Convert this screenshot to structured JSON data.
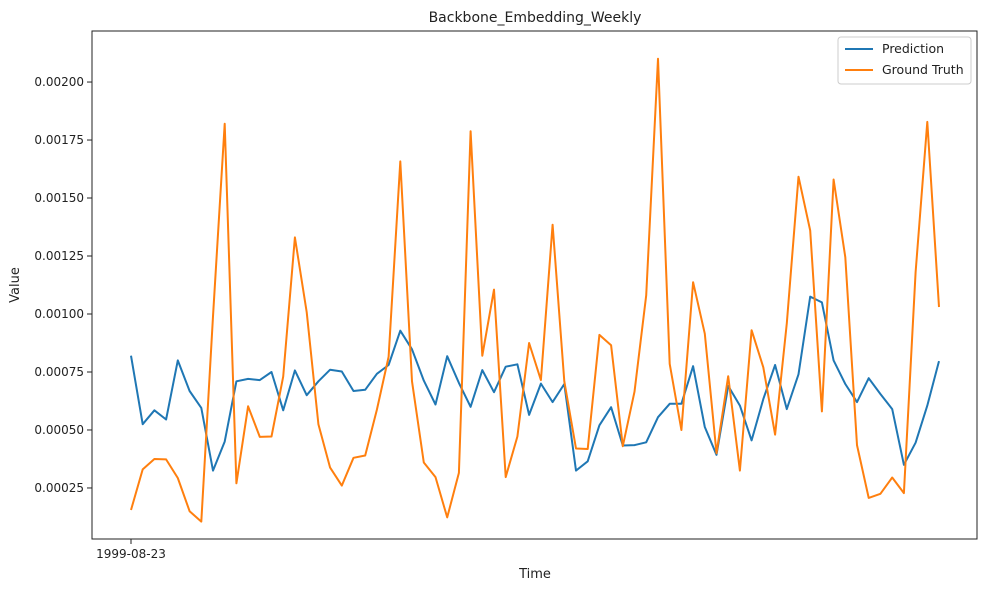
{
  "chart_data": {
    "type": "line",
    "title": "Backbone_Embedding_Weekly",
    "xlabel": "Time",
    "ylabel": "Value",
    "x_tick_labels": [
      {
        "index": 0,
        "label": "1999-08-23"
      }
    ],
    "ylim": [
      3e-05,
      0.00222
    ],
    "y_ticks": [
      0.00025,
      0.0005,
      0.00075,
      0.001,
      0.00125,
      0.0015,
      0.00175,
      0.002
    ],
    "y_tick_labels": [
      "0.00025",
      "0.00050",
      "0.00075",
      "0.00100",
      "0.00125",
      "0.00150",
      "0.00175",
      "0.00200"
    ],
    "legend_position": "top-right",
    "grid": false,
    "series": [
      {
        "name": "Prediction",
        "color": "#1f77b4",
        "values": [
          0.00082,
          0.000525,
          0.000585,
          0.000545,
          0.0008,
          0.000668,
          0.000595,
          0.000325,
          0.00045,
          0.00071,
          0.00072,
          0.000715,
          0.00075,
          0.000585,
          0.000757,
          0.00065,
          0.00071,
          0.00076,
          0.000752,
          0.000668,
          0.000673,
          0.000742,
          0.00078,
          0.000928,
          0.000848,
          0.000713,
          0.00061,
          0.000818,
          0.000703,
          0.0006,
          0.000758,
          0.000663,
          0.000773,
          0.000783,
          0.000565,
          0.0007,
          0.00062,
          0.000698,
          0.000325,
          0.000365,
          0.00052,
          0.000598,
          0.000433,
          0.000435,
          0.000447,
          0.000555,
          0.000613,
          0.000613,
          0.000775,
          0.000513,
          0.000393,
          0.00069,
          0.000605,
          0.000455,
          0.000633,
          0.00078,
          0.00059,
          0.00074,
          0.001075,
          0.00105,
          0.0008,
          0.000698,
          0.00062,
          0.000723,
          0.000655,
          0.00059,
          0.00035,
          0.000445,
          0.000605,
          0.000797
        ]
      },
      {
        "name": "Ground Truth",
        "color": "#ff7f0e",
        "values": [
          0.000155,
          0.00033,
          0.000375,
          0.000373,
          0.000293,
          0.00015,
          0.000105,
          0.00099,
          0.00182,
          0.00027,
          0.000602,
          0.00047,
          0.000472,
          0.00073,
          0.00133,
          0.001008,
          0.000525,
          0.000338,
          0.00026,
          0.00038,
          0.00039,
          0.000588,
          0.000815,
          0.001658,
          0.00071,
          0.00036,
          0.000297,
          0.000123,
          0.000315,
          0.001788,
          0.00082,
          0.001105,
          0.000297,
          0.000472,
          0.000875,
          0.000715,
          0.001385,
          0.00071,
          0.00042,
          0.000418,
          0.00091,
          0.000865,
          0.00043,
          0.000665,
          0.00108,
          0.0021,
          0.000785,
          0.0005,
          0.001137,
          0.000915,
          0.0004,
          0.000732,
          0.000325,
          0.00093,
          0.00077,
          0.00048,
          0.00096,
          0.001592,
          0.00136,
          0.00058,
          0.00158,
          0.001245,
          0.000435,
          0.000207,
          0.000225,
          0.000295,
          0.000228,
          0.00118,
          0.001828,
          0.00103
        ]
      }
    ]
  }
}
